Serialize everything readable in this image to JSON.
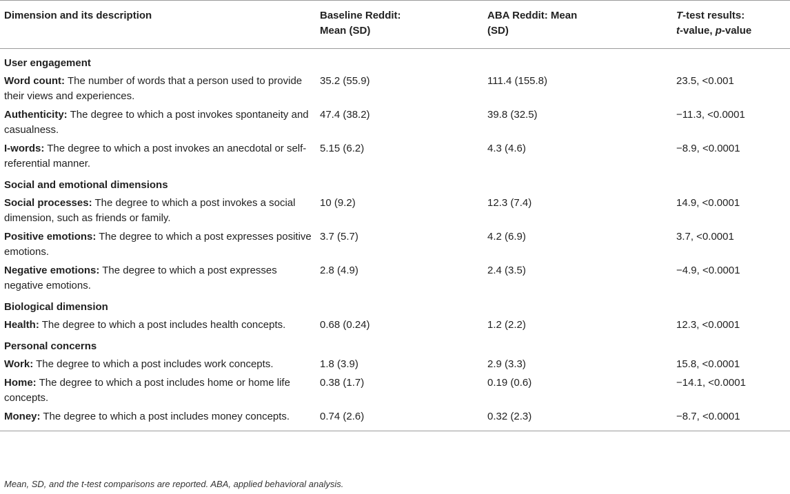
{
  "header": {
    "col1": "Dimension and its description",
    "col2_line1": "Baseline Reddit:",
    "col2_line2": "Mean (SD)",
    "col3_line1": "ABA Reddit: Mean",
    "col3_line2": "(SD)",
    "col4_line1_italic": "T",
    "col4_line1_rest": "-test results:",
    "col4_line2_italic_t": "t",
    "col4_line2_mid": "-value, ",
    "col4_line2_italic_p": "p",
    "col4_line2_end": "-value"
  },
  "sections": [
    {
      "title": "User engagement",
      "rows": [
        {
          "term": "Word count:",
          "desc": " The number of words that a person used to provide their views and experiences.",
          "baseline": "35.2 (55.9)",
          "aba": "111.4 (155.8)",
          "ttest": "23.5, <0.001"
        },
        {
          "term": "Authenticity:",
          "desc": " The degree to which a post invokes spontaneity and casualness.",
          "baseline": "47.4 (38.2)",
          "aba": "39.8 (32.5)",
          "ttest": "−11.3, <0.0001"
        },
        {
          "term": "I-words:",
          "desc": " The degree to which a post invokes an anecdotal or self-referential manner.",
          "baseline": "5.15 (6.2)",
          "aba": "4.3 (4.6)",
          "ttest": "−8.9, <0.0001"
        }
      ]
    },
    {
      "title": "Social and emotional dimensions",
      "rows": [
        {
          "term": "Social processes:",
          "desc": " The degree to which a post invokes a social dimension, such as friends or family.",
          "baseline": "10 (9.2)",
          "aba": "12.3 (7.4)",
          "ttest": "14.9, <0.0001"
        },
        {
          "term": "Positive emotions:",
          "desc": " The degree to which a post expresses positive emotions.",
          "baseline": "3.7 (5.7)",
          "aba": "4.2 (6.9)",
          "ttest": "3.7, <0.0001"
        },
        {
          "term": "Negative emotions:",
          "desc": " The degree to which a post expresses negative emotions.",
          "baseline": "2.8 (4.9)",
          "aba": "2.4 (3.5)",
          "ttest": "−4.9, <0.0001"
        }
      ]
    },
    {
      "title": "Biological dimension",
      "rows": [
        {
          "term": "Health:",
          "desc": " The degree to which a post includes health concepts.",
          "baseline": "0.68 (0.24)",
          "aba": "1.2 (2.2)",
          "ttest": "12.3, <0.0001"
        }
      ]
    },
    {
      "title": "Personal concerns",
      "rows": [
        {
          "term": "Work:",
          "desc": " The degree to which a post includes work concepts.",
          "baseline": "1.8 (3.9)",
          "aba": "2.9 (3.3)",
          "ttest": "15.8, <0.0001"
        },
        {
          "term": "Home:",
          "desc": " The degree to which a post includes home or home life concepts.",
          "baseline": "0.38 (1.7)",
          "aba": "0.19 (0.6)",
          "ttest": "−14.1, <0.0001"
        },
        {
          "term": "Money:",
          "desc": " The degree to which a post includes money concepts.",
          "baseline": "0.74 (2.6)",
          "aba": "0.32 (2.3)",
          "ttest": "−8.7, <0.0001"
        }
      ]
    }
  ],
  "footnote": "Mean, SD, and the t-test comparisons are reported. ABA, applied behavioral analysis."
}
